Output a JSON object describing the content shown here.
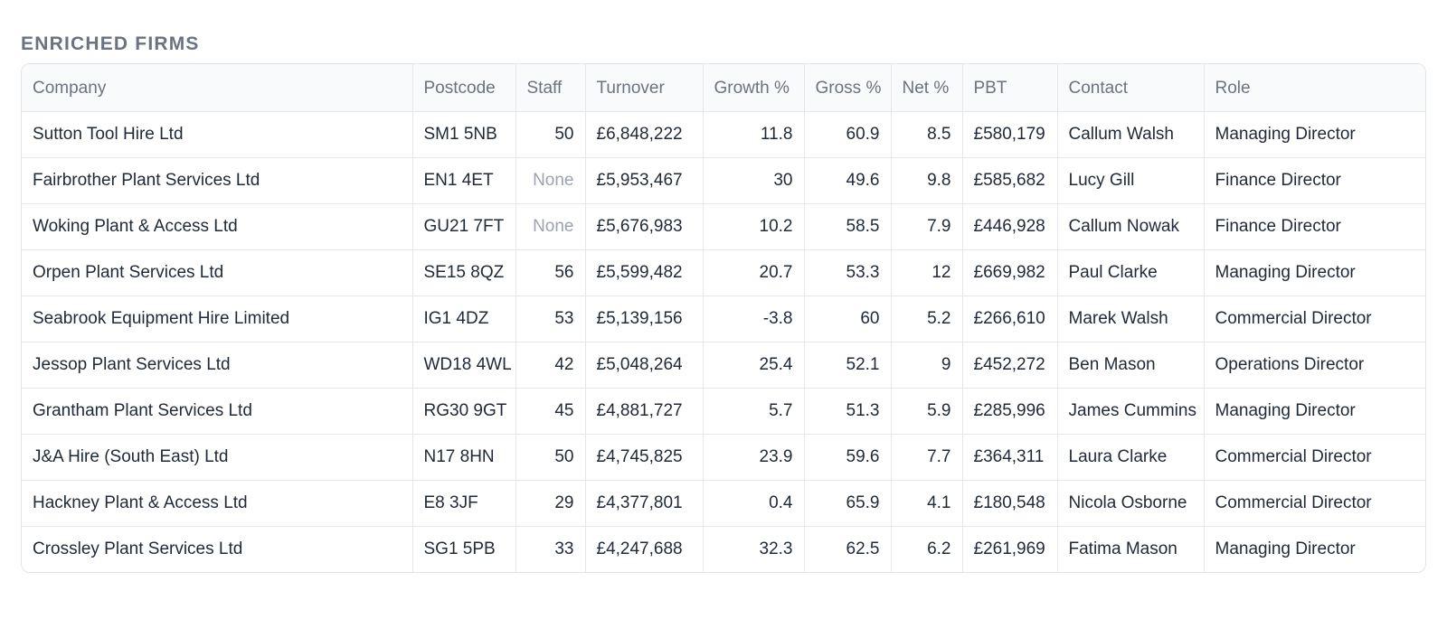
{
  "section": {
    "title": "ENRICHED FIRMS"
  },
  "table": {
    "columns": [
      "Company",
      "Postcode",
      "Staff",
      "Turnover",
      "Growth %",
      "Gross %",
      "Net %",
      "PBT",
      "Contact",
      "Role"
    ],
    "rows": [
      [
        "Sutton Tool Hire Ltd",
        "SM1 5NB",
        "50",
        "£6,848,222",
        "11.8",
        "60.9",
        "8.5",
        "£580,179",
        "Callum Walsh",
        "Managing Director"
      ],
      [
        "Fairbrother Plant Services Ltd",
        "EN1 4ET",
        "None",
        "£5,953,467",
        "30",
        "49.6",
        "9.8",
        "£585,682",
        "Lucy Gill",
        "Finance Director"
      ],
      [
        "Woking Plant & Access Ltd",
        "GU21 7FT",
        "None",
        "£5,676,983",
        "10.2",
        "58.5",
        "7.9",
        "£446,928",
        "Callum Nowak",
        "Finance Director"
      ],
      [
        "Orpen Plant Services Ltd",
        "SE15 8QZ",
        "56",
        "£5,599,482",
        "20.7",
        "53.3",
        "12",
        "£669,982",
        "Paul Clarke",
        "Managing Director"
      ],
      [
        "Seabrook Equipment Hire Limited",
        "IG1 4DZ",
        "53",
        "£5,139,156",
        "-3.8",
        "60",
        "5.2",
        "£266,610",
        "Marek Walsh",
        "Commercial Director"
      ],
      [
        "Jessop Plant Services Ltd",
        "WD18 4WL",
        "42",
        "£5,048,264",
        "25.4",
        "52.1",
        "9",
        "£452,272",
        "Ben Mason",
        "Operations Director"
      ],
      [
        "Grantham Plant Services Ltd",
        "RG30 9GT",
        "45",
        "£4,881,727",
        "5.7",
        "51.3",
        "5.9",
        "£285,996",
        "James Cummins",
        "Managing Director"
      ],
      [
        "J&A Hire (South East) Ltd",
        "N17 8HN",
        "50",
        "£4,745,825",
        "23.9",
        "59.6",
        "7.7",
        "£364,311",
        "Laura Clarke",
        "Commercial Director"
      ],
      [
        "Hackney Plant & Access Ltd",
        "E8 3JF",
        "29",
        "£4,377,801",
        "0.4",
        "65.9",
        "4.1",
        "£180,548",
        "Nicola Osborne",
        "Commercial Director"
      ],
      [
        "Crossley Plant Services Ltd",
        "SG1 5PB",
        "33",
        "£4,247,688",
        "32.3",
        "62.5",
        "6.2",
        "£261,969",
        "Fatima Mason",
        "Managing Director"
      ]
    ]
  }
}
